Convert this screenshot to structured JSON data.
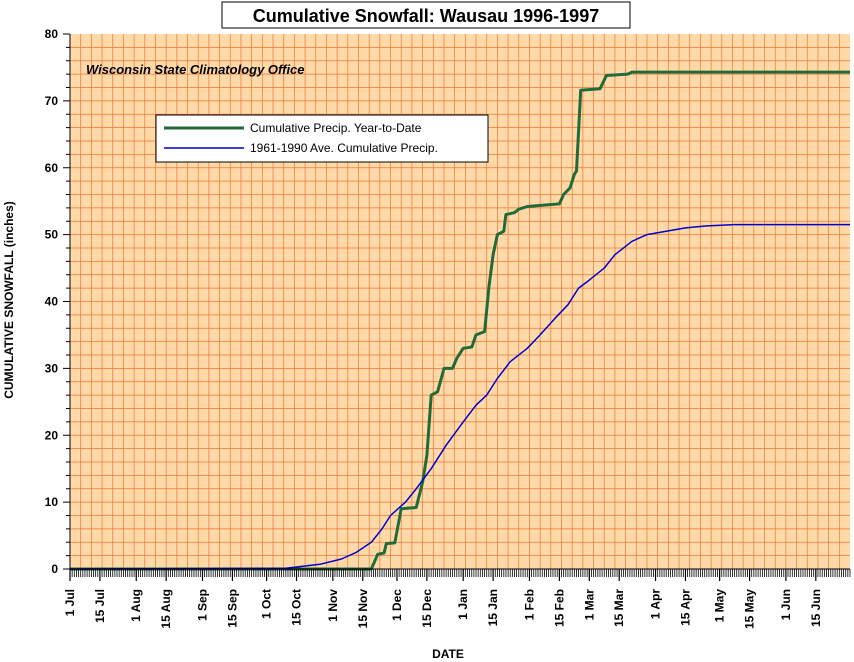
{
  "chart_data": {
    "type": "line",
    "title": "Cumulative Snowfall: Wausau 1996-1997",
    "annotation": "Wisconsin State Climatology Office",
    "xlabel": "DATE",
    "ylabel": "CUMULATIVE SNOWFALL (inches)",
    "ylim": [
      0,
      80
    ],
    "xlim": [
      "1996-07-01",
      "1997-07-01"
    ],
    "yticks": [
      "0",
      "10",
      "20",
      "30",
      "40",
      "50",
      "60",
      "70",
      "80"
    ],
    "xticks": [
      {
        "date": "1996-07-01",
        "label": "1 Jul"
      },
      {
        "date": "1996-07-15",
        "label": "15 Jul"
      },
      {
        "date": "1996-08-01",
        "label": "1 Aug"
      },
      {
        "date": "1996-08-15",
        "label": "15 Aug"
      },
      {
        "date": "1996-09-01",
        "label": "1 Sep"
      },
      {
        "date": "1996-09-15",
        "label": "15 Sep"
      },
      {
        "date": "1996-10-01",
        "label": "1 Oct"
      },
      {
        "date": "1996-10-15",
        "label": "15 Oct"
      },
      {
        "date": "1996-11-01",
        "label": "1 Nov"
      },
      {
        "date": "1996-11-15",
        "label": "15 Nov"
      },
      {
        "date": "1996-12-01",
        "label": "1 Dec"
      },
      {
        "date": "1996-12-15",
        "label": "15 Dec"
      },
      {
        "date": "1997-01-01",
        "label": "1 Jan"
      },
      {
        "date": "1997-01-15",
        "label": "15 Jan"
      },
      {
        "date": "1997-02-01",
        "label": "1 Feb"
      },
      {
        "date": "1997-02-15",
        "label": "15 Feb"
      },
      {
        "date": "1997-03-01",
        "label": "1 Mar"
      },
      {
        "date": "1997-03-15",
        "label": "15 Mar"
      },
      {
        "date": "1997-04-01",
        "label": "1 Apr"
      },
      {
        "date": "1997-04-15",
        "label": "15 Apr"
      },
      {
        "date": "1997-05-01",
        "label": "1 May"
      },
      {
        "date": "1997-05-15",
        "label": "15 May"
      },
      {
        "date": "1997-06-01",
        "label": "1 Jun"
      },
      {
        "date": "1997-06-15",
        "label": "15 Jun"
      }
    ],
    "grid": true,
    "legend_position": "upper-left",
    "background_color": "#ffd9a8",
    "grid_color": "#ee7733",
    "series": [
      {
        "name": "Cumulative Precip. Year-to-Date",
        "color": "#1f6b3a",
        "points": [
          [
            "1996-07-01",
            0
          ],
          [
            "1996-11-19",
            0
          ],
          [
            "1996-11-22",
            2.2
          ],
          [
            "1996-11-25",
            2.4
          ],
          [
            "1996-11-26",
            3.8
          ],
          [
            "1996-11-30",
            3.9
          ],
          [
            "1996-12-03",
            9.0
          ],
          [
            "1996-12-10",
            9.2
          ],
          [
            "1996-12-13",
            13.0
          ],
          [
            "1996-12-15",
            17.0
          ],
          [
            "1996-12-17",
            26.0
          ],
          [
            "1996-12-20",
            26.5
          ],
          [
            "1996-12-23",
            30.0
          ],
          [
            "1996-12-27",
            30.0
          ],
          [
            "1996-12-29",
            31.5
          ],
          [
            "1997-01-01",
            33.0
          ],
          [
            "1997-01-05",
            33.2
          ],
          [
            "1997-01-07",
            35.0
          ],
          [
            "1997-01-11",
            35.5
          ],
          [
            "1997-01-13",
            42.0
          ],
          [
            "1997-01-15",
            47.0
          ],
          [
            "1997-01-17",
            50.0
          ],
          [
            "1997-01-20",
            50.5
          ],
          [
            "1997-01-21",
            53.0
          ],
          [
            "1997-01-25",
            53.3
          ],
          [
            "1997-01-27",
            53.8
          ],
          [
            "1997-01-31",
            54.2
          ],
          [
            "1997-02-15",
            54.6
          ],
          [
            "1997-02-17",
            56.0
          ],
          [
            "1997-02-20",
            57.0
          ],
          [
            "1997-02-22",
            59.0
          ],
          [
            "1997-02-23",
            59.5
          ],
          [
            "1997-02-25",
            71.6
          ],
          [
            "1997-03-06",
            71.8
          ],
          [
            "1997-03-09",
            73.8
          ],
          [
            "1997-03-19",
            74.0
          ],
          [
            "1997-03-21",
            74.3
          ],
          [
            "1997-07-01",
            74.3
          ]
        ]
      },
      {
        "name": "1961-1990 Ave. Cumulative Precip.",
        "color": "#0000cc",
        "points": [
          [
            "1996-07-01",
            0
          ],
          [
            "1996-10-10",
            0.1
          ],
          [
            "1996-10-15",
            0.3
          ],
          [
            "1996-10-26",
            0.7
          ],
          [
            "1996-11-05",
            1.5
          ],
          [
            "1996-11-12",
            2.5
          ],
          [
            "1996-11-19",
            4.0
          ],
          [
            "1996-11-24",
            6.0
          ],
          [
            "1996-11-28",
            8.0
          ],
          [
            "1996-12-05",
            10.0
          ],
          [
            "1996-12-10",
            12.0
          ],
          [
            "1996-12-17",
            15.0
          ],
          [
            "1996-12-24",
            18.5
          ],
          [
            "1997-01-01",
            22.0
          ],
          [
            "1997-01-07",
            24.5
          ],
          [
            "1997-01-12",
            26.0
          ],
          [
            "1997-01-17",
            28.5
          ],
          [
            "1997-01-23",
            31.0
          ],
          [
            "1997-01-31",
            33.0
          ],
          [
            "1997-02-06",
            35.0
          ],
          [
            "1997-02-13",
            37.5
          ],
          [
            "1997-02-19",
            39.5
          ],
          [
            "1997-02-24",
            42.0
          ],
          [
            "1997-03-01",
            43.2
          ],
          [
            "1997-03-08",
            45.0
          ],
          [
            "1997-03-13",
            47.0
          ],
          [
            "1997-03-21",
            49.0
          ],
          [
            "1997-03-28",
            50.0
          ],
          [
            "1997-04-06",
            50.5
          ],
          [
            "1997-04-15",
            51.0
          ],
          [
            "1997-04-25",
            51.3
          ],
          [
            "1997-05-08",
            51.5
          ],
          [
            "1997-07-01",
            51.5
          ]
        ]
      }
    ]
  }
}
